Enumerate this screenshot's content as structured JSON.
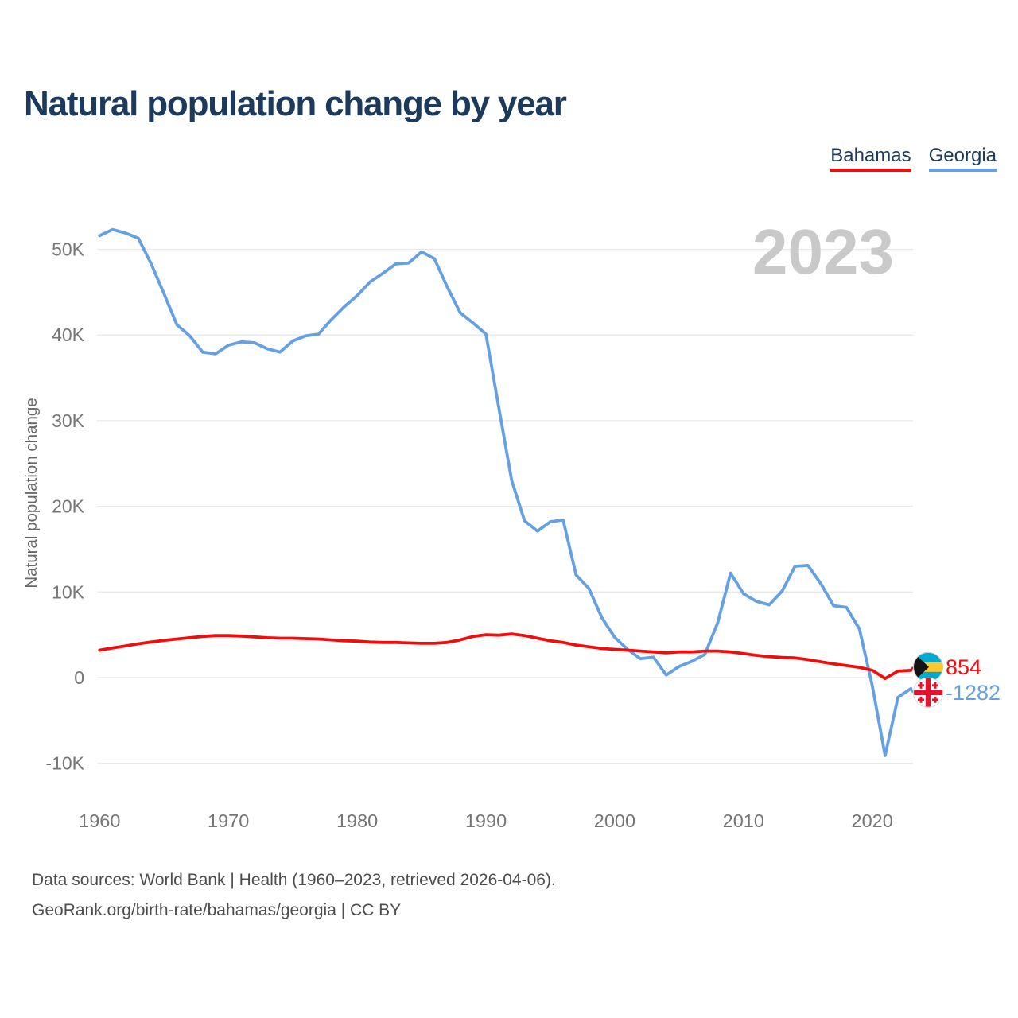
{
  "header": {
    "title": "Natural population change by year"
  },
  "legend": {
    "items": [
      {
        "label": "Bahamas",
        "color": "#f20d0d"
      },
      {
        "label": "Georgia",
        "color": "#64a0e2"
      }
    ]
  },
  "colors": {
    "bahamas": "#f20d0d",
    "georgia": "#64a0e2",
    "grid": "#e8e8e8",
    "tick": "#767676",
    "axis_title": "#666666",
    "watermark": "#c9c9c9",
    "title_text": "#1c3a5c",
    "footer_text": "#4d4d4d",
    "flag_bahamas_aqua": "#00a9ce",
    "flag_bahamas_gold": "#ffc72c",
    "flag_bahamas_black": "#141414",
    "flag_georgia_red": "#e8112d",
    "flag_georgia_white": "#ffffff"
  },
  "chart_data": {
    "type": "line",
    "title": "Natural population change by year",
    "xlabel": "",
    "ylabel": "Natural population change",
    "watermark": "2023",
    "grid": true,
    "legend_position": "top-right",
    "ylim": [
      -10000,
      50000
    ],
    "y_ticks": [
      {
        "value": 50000,
        "label": "50K"
      },
      {
        "value": 40000,
        "label": "40K"
      },
      {
        "value": 30000,
        "label": "30K"
      },
      {
        "value": 20000,
        "label": "20K"
      },
      {
        "value": 10000,
        "label": "10K"
      },
      {
        "value": 0,
        "label": "0"
      },
      {
        "value": -10000,
        "label": "-10K"
      }
    ],
    "x_ticks": [
      1960,
      1970,
      1980,
      1990,
      2000,
      2010,
      2020
    ],
    "x": [
      1960,
      1961,
      1962,
      1963,
      1964,
      1965,
      1966,
      1967,
      1968,
      1969,
      1970,
      1971,
      1972,
      1973,
      1974,
      1975,
      1976,
      1977,
      1978,
      1979,
      1980,
      1981,
      1982,
      1983,
      1984,
      1985,
      1986,
      1987,
      1988,
      1989,
      1990,
      1991,
      1992,
      1993,
      1994,
      1995,
      1996,
      1997,
      1998,
      1999,
      2000,
      2001,
      2002,
      2003,
      2004,
      2005,
      2006,
      2007,
      2008,
      2009,
      2010,
      2011,
      2012,
      2013,
      2014,
      2015,
      2016,
      2017,
      2018,
      2019,
      2020,
      2021,
      2022,
      2023
    ],
    "series": [
      {
        "name": "Bahamas",
        "color": "#f20d0d",
        "end_label": "854",
        "values": [
          3200,
          3450,
          3700,
          3950,
          4150,
          4350,
          4500,
          4650,
          4800,
          4900,
          4900,
          4850,
          4750,
          4650,
          4600,
          4600,
          4550,
          4500,
          4400,
          4300,
          4250,
          4150,
          4100,
          4100,
          4050,
          4000,
          4000,
          4100,
          4400,
          4800,
          5000,
          4950,
          5100,
          4900,
          4600,
          4300,
          4100,
          3800,
          3600,
          3400,
          3300,
          3200,
          3100,
          3000,
          2900,
          3000,
          3000,
          3100,
          3100,
          3000,
          2800,
          2600,
          2450,
          2350,
          2300,
          2100,
          1850,
          1600,
          1400,
          1200,
          850,
          -100,
          750,
          854
        ]
      },
      {
        "name": "Georgia",
        "color": "#64a0e2",
        "end_label": "-1282",
        "values": [
          51600,
          52300,
          51900,
          51300,
          48300,
          44800,
          41200,
          39900,
          38000,
          37800,
          38800,
          39200,
          39100,
          38400,
          38000,
          39300,
          39900,
          40100,
          41800,
          43300,
          44600,
          46200,
          47200,
          48300,
          48400,
          49700,
          48900,
          45600,
          42600,
          41400,
          40100,
          31500,
          23000,
          18300,
          17100,
          18200,
          18400,
          12000,
          10400,
          7000,
          4700,
          3300,
          2200,
          2400,
          300,
          1300,
          1900,
          2700,
          6400,
          12200,
          9800,
          8900,
          8500,
          10100,
          13000,
          13100,
          11000,
          8400,
          8200,
          5700,
          -900,
          -9100,
          -2300,
          -1282
        ]
      }
    ]
  },
  "footer": {
    "line1": "Data sources: World Bank | Health (1960–2023, retrieved 2026-04-06).",
    "line2": "GeoRank.org/birth-rate/bahamas/georgia | CC BY"
  }
}
